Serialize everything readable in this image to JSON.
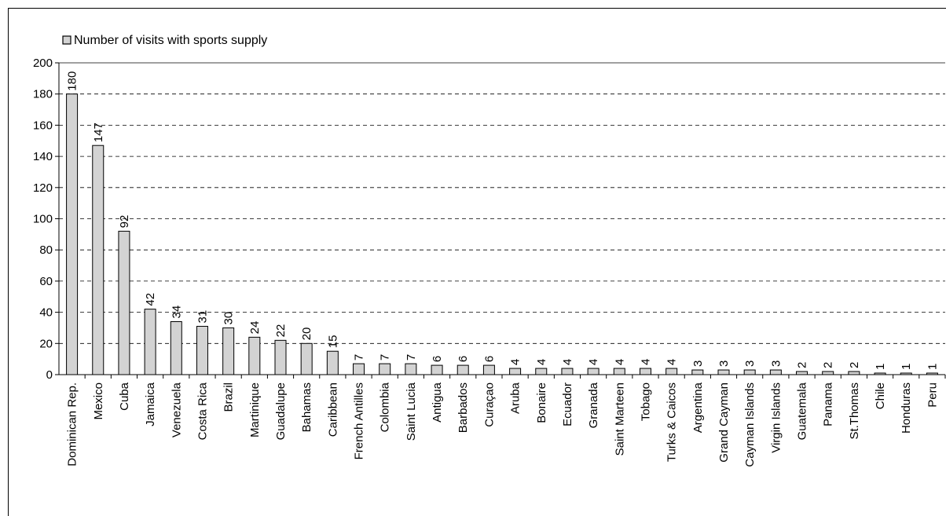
{
  "chart_data": {
    "type": "bar",
    "legend": {
      "label": "Number of visits with sports supply",
      "position": "top-left"
    },
    "categories": [
      "Dominican Rep.",
      "Mexico",
      "Cuba",
      "Jamaica",
      "Venezuela",
      "Costa Rica",
      "Brazil",
      "Martinique",
      "Guadalupe",
      "Bahamas",
      "Caribbean",
      "French Antilles",
      "Colombia",
      "Saint Lucia",
      "Antigua",
      "Barbados",
      "Curaçao",
      "Aruba",
      "Bonaire",
      "Ecuador",
      "Granada",
      "Saint Marteen",
      "Tobago",
      "Turks & Caicos",
      "Argentina",
      "Grand Cayman",
      "Cayman Islands",
      "Virgin Islands",
      "Guatemala",
      "Panama",
      "St.Thomas",
      "Chile",
      "Honduras",
      "Peru"
    ],
    "series": [
      {
        "name": "Number of visits with sports supply",
        "values": [
          180,
          147,
          92,
          42,
          34,
          31,
          30,
          24,
          22,
          20,
          15,
          7,
          7,
          7,
          6,
          6,
          6,
          4,
          4,
          4,
          4,
          4,
          4,
          4,
          3,
          3,
          3,
          3,
          2,
          2,
          2,
          1,
          1,
          1
        ]
      }
    ],
    "ylim": [
      0,
      200
    ],
    "yticks": [
      0,
      20,
      40,
      60,
      80,
      100,
      120,
      140,
      160,
      180,
      200
    ],
    "grid": "horizontal dashed",
    "colors": {
      "bar_fill": "#d3d3d3",
      "bar_stroke": "#000000",
      "grid": "#000000"
    }
  }
}
